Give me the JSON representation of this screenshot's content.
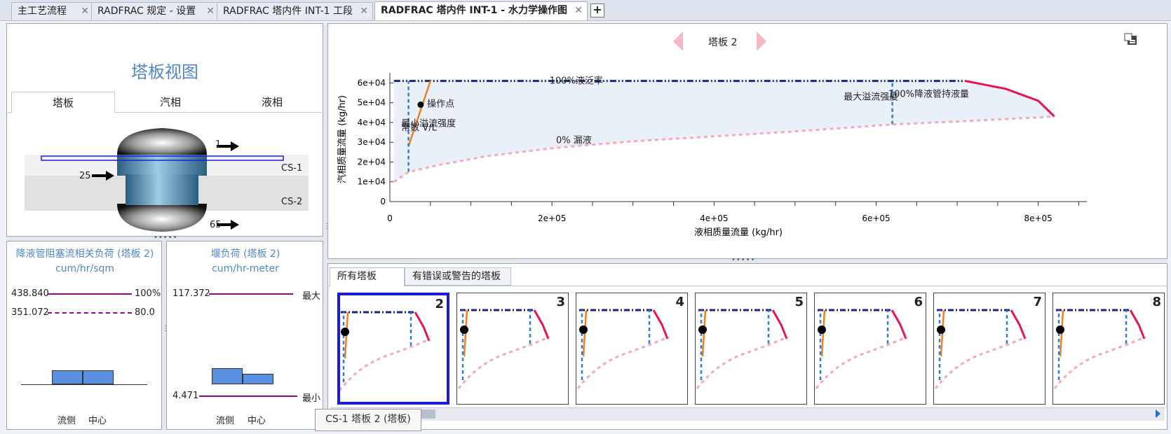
{
  "doc_tabs": [
    {
      "label": "主工艺流程",
      "close": "✕"
    },
    {
      "label": "RADFRAC 规定 - 设置",
      "close": "✕"
    },
    {
      "label": "RADFRAC 塔内件 INT-1 工段",
      "close": "✕"
    },
    {
      "label": "RADFRAC 塔内件 INT-1 - 水力学操作图",
      "close": "✕"
    }
  ],
  "add_tab_label": "+",
  "tray_view": {
    "title": "塔板视图",
    "tabs": [
      "塔板",
      "汽相",
      "液相"
    ],
    "section_labels": [
      "CS-1",
      "CS-2"
    ],
    "stream_labels": [
      "1",
      "25",
      "65"
    ]
  },
  "downcomer_load": {
    "title": "降液管阻塞流相关负荷 (塔板 2)",
    "unit": "cum/hr/sqm",
    "value_100": "438.840",
    "value_80": "351.072",
    "pct_100": "100%",
    "pct_80": "80.0",
    "bars": [
      0.6,
      0.6
    ],
    "x_labels": [
      "流侧",
      "中心"
    ]
  },
  "weir_load": {
    "title": "堰负荷 (塔板 2)",
    "unit": "cum/hr-meter",
    "max_value": "117.372",
    "max_label": "最大",
    "min_value": "4.471",
    "min_label": "最小",
    "bars": [
      0.55,
      0.35
    ],
    "x_labels": [
      "流侧",
      "中心"
    ]
  },
  "tray_nav": {
    "label": "塔板 2",
    "prev_icon": "triangle-left-icon",
    "next_icon": "triangle-right-icon"
  },
  "chart_data": {
    "type": "line",
    "xlabel": "液相质量流量 (kg/hr)",
    "ylabel": "汽相质量流量 (kg/hr)",
    "xlim": [
      0,
      860000
    ],
    "ylim": [
      0,
      63000
    ],
    "x_ticks": [
      "0",
      "2e+05",
      "4e+05",
      "6e+05",
      "8e+05"
    ],
    "y_ticks": [
      "0",
      "1e+04",
      "2e+04",
      "3e+04",
      "4e+04",
      "5e+04",
      "6e+04"
    ],
    "annotations": [
      "100%液泛率",
      "最大溢流强度",
      "100%降液管持液量",
      "最小溢流强度",
      "常数 V/L",
      "0% 漏液",
      "操作点"
    ],
    "series": [
      {
        "name": "100%液泛率",
        "color": "#1a237e",
        "points": [
          [
            5000,
            61000
          ],
          [
            710000,
            61000
          ]
        ]
      },
      {
        "name": "100%降液管持液量",
        "color": "#e8134f",
        "points": [
          [
            710000,
            61000
          ],
          [
            760000,
            57000
          ],
          [
            800000,
            51000
          ],
          [
            820000,
            43000
          ]
        ]
      },
      {
        "name": "常数 V/L",
        "color": "#f07f20",
        "points": [
          [
            23000,
            28000
          ],
          [
            50000,
            61000
          ]
        ]
      },
      {
        "name": "最小溢流强度",
        "color": "#2f7fe0",
        "points": [
          [
            23000,
            15000
          ],
          [
            23000,
            61000
          ]
        ]
      },
      {
        "name": "最大溢流强度",
        "color": "#2f7fe0",
        "points": [
          [
            620000,
            39000
          ],
          [
            620000,
            61000
          ]
        ]
      },
      {
        "name": "0% 漏液",
        "color": "#f7a8bf",
        "points": [
          [
            5000,
            10000
          ],
          [
            23000,
            15000
          ],
          [
            60000,
            18500
          ],
          [
            120000,
            23000
          ],
          [
            200000,
            27000
          ],
          [
            300000,
            30500
          ],
          [
            400000,
            33000
          ],
          [
            500000,
            35500
          ],
          [
            620000,
            39000
          ],
          [
            700000,
            40500
          ],
          [
            820000,
            43000
          ]
        ]
      }
    ],
    "operating_point": [
      38000,
      49000
    ]
  },
  "bottom_tabs": [
    "所有塔板",
    "有错误或警告的塔板"
  ],
  "thumbnails": [
    "2",
    "3",
    "4",
    "5",
    "6",
    "7",
    "8"
  ],
  "tooltip": "CS-1 塔板 2 (塔板)"
}
